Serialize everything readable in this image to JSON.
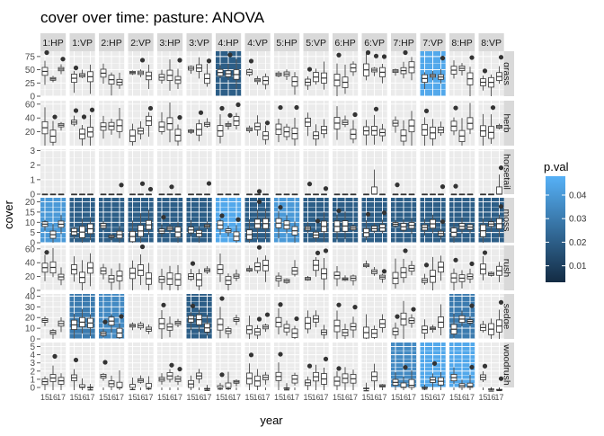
{
  "chart_data": {
    "type": "boxplot",
    "title": "cover over time: pasture: ANOVA",
    "xlabel": "year",
    "ylabel": "cover",
    "x_tick_labels": [
      "15",
      "16",
      "17"
    ],
    "facet_columns": [
      "1:HP",
      "1:VP",
      "2:HP",
      "2:VP",
      "3:HP",
      "3:VP",
      "4:HP",
      "4:VP",
      "5:HP",
      "5:VP",
      "6:HP",
      "6:VP",
      "7:HP",
      "7:VP",
      "8:HP",
      "8:VP"
    ],
    "facet_rows": [
      {
        "label": "grass",
        "y_ticks": [
          0,
          25,
          50,
          75
        ],
        "ylim": [
          0,
          85
        ],
        "base": 40
      },
      {
        "label": "herb",
        "y_ticks": [
          20,
          40,
          60
        ],
        "ylim": [
          0,
          65
        ],
        "base": 25
      },
      {
        "label": "horsetail",
        "y_ticks": [
          0,
          1,
          2,
          3
        ],
        "ylim": [
          0,
          3.1
        ],
        "base": 0
      },
      {
        "label": "moss",
        "y_ticks": [
          0,
          5,
          10,
          15,
          20
        ],
        "ylim": [
          0,
          22
        ],
        "base": 6
      },
      {
        "label": "rush",
        "y_ticks": [
          0,
          20,
          40,
          60
        ],
        "ylim": [
          0,
          65
        ],
        "base": 25
      },
      {
        "label": "sedge",
        "y_ticks": [
          0,
          10,
          20,
          30,
          40
        ],
        "ylim": [
          0,
          42
        ],
        "base": 12
      },
      {
        "label": "woodrush",
        "y_ticks": [
          0,
          1,
          2,
          3,
          4,
          5
        ],
        "ylim": [
          0,
          5.5
        ],
        "base": 0.5
      }
    ],
    "legend": {
      "title": "p.val",
      "ticks": [
        0.01,
        0.02,
        0.03,
        0.04
      ],
      "range": [
        0.003,
        0.048
      ],
      "colors": [
        "#132B43",
        "#56B1F7"
      ],
      "position": "right"
    },
    "significant_panels": [
      {
        "row": "grass",
        "col": "4:HP",
        "p": 0.02
      },
      {
        "row": "grass",
        "col": "7:VP",
        "p": 0.045
      },
      {
        "row": "moss",
        "col": "1:HP",
        "p": 0.04
      },
      {
        "row": "moss",
        "col": "1:VP",
        "p": 0.02
      },
      {
        "row": "moss",
        "col": "2:HP",
        "p": 0.02
      },
      {
        "row": "moss",
        "col": "2:VP",
        "p": 0.02
      },
      {
        "row": "moss",
        "col": "3:HP",
        "p": 0.02
      },
      {
        "row": "moss",
        "col": "3:VP",
        "p": 0.02
      },
      {
        "row": "moss",
        "col": "4:HP",
        "p": 0.045
      },
      {
        "row": "moss",
        "col": "4:VP",
        "p": 0.02
      },
      {
        "row": "moss",
        "col": "5:HP",
        "p": 0.04
      },
      {
        "row": "moss",
        "col": "5:VP",
        "p": 0.02
      },
      {
        "row": "moss",
        "col": "6:HP",
        "p": 0.02
      },
      {
        "row": "moss",
        "col": "6:VP",
        "p": 0.02
      },
      {
        "row": "moss",
        "col": "7:HP",
        "p": 0.02
      },
      {
        "row": "moss",
        "col": "7:VP",
        "p": 0.02
      },
      {
        "row": "moss",
        "col": "8:HP",
        "p": 0.02
      },
      {
        "row": "moss",
        "col": "8:VP",
        "p": 0.02
      },
      {
        "row": "sedge",
        "col": "1:VP",
        "p": 0.03
      },
      {
        "row": "sedge",
        "col": "2:HP",
        "p": 0.035
      },
      {
        "row": "sedge",
        "col": "3:VP",
        "p": 0.02
      },
      {
        "row": "sedge",
        "col": "8:HP",
        "p": 0.03
      },
      {
        "row": "woodrush",
        "col": "7:HP",
        "p": 0.035
      },
      {
        "row": "woodrush",
        "col": "7:VP",
        "p": 0.045
      },
      {
        "row": "woodrush",
        "col": "8:HP",
        "p": 0.045
      }
    ]
  }
}
